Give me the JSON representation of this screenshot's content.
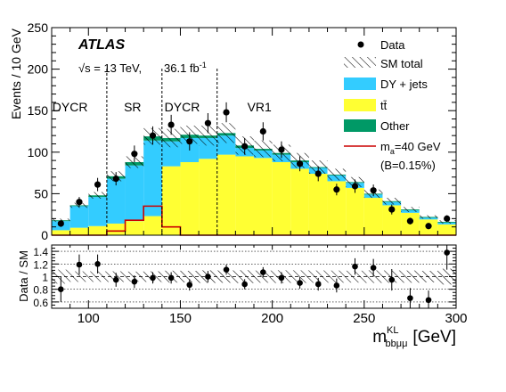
{
  "experiment_label": "ATLAS",
  "energy_label": "√s = 13 TeV,",
  "lumi_label": "36.1  fb",
  "lumi_sup": "-1",
  "chart_data": {
    "type": "histogram",
    "xlabel": "m",
    "xlabel_sup": "KL",
    "xlabel_sub": "bbμμ",
    "xlabel_unit": "[GeV]",
    "ylabel_top": "Events / 10 GeV",
    "ylabel_bottom": "Data / SM",
    "xlim": [
      80,
      300
    ],
    "ylim_top": [
      0,
      250
    ],
    "ylim_bottom": [
      0.5,
      1.5
    ],
    "x_ticks": [
      100,
      150,
      200,
      250,
      300
    ],
    "y_ticks_top": [
      0,
      50,
      100,
      150,
      200,
      250
    ],
    "y_ticks_bottom": [
      0.6,
      0.8,
      1,
      1.2,
      1.4
    ],
    "bin_edges": [
      80,
      90,
      100,
      110,
      120,
      130,
      140,
      150,
      160,
      170,
      180,
      190,
      200,
      210,
      220,
      230,
      240,
      250,
      260,
      270,
      280,
      290,
      300
    ],
    "series": [
      {
        "name": "tt̄",
        "color": "#ffff33",
        "values": [
          6,
          9,
          11,
          14,
          17,
          23,
          83,
          88,
          92,
          97,
          95,
          93,
          88,
          80,
          74,
          65,
          57,
          45,
          36,
          27,
          19,
          13
        ]
      },
      {
        "name": "DY + jets",
        "color": "#33ccff",
        "values": [
          11,
          26,
          35,
          54,
          67,
          91,
          30,
          29,
          25,
          23,
          10,
          9,
          9,
          8,
          7,
          7,
          6,
          4,
          4,
          3,
          2,
          2
        ]
      },
      {
        "name": "Other",
        "color": "#009966",
        "values": [
          1,
          1,
          2,
          3,
          4,
          5,
          4,
          4,
          3,
          3,
          3,
          2,
          2,
          2,
          1,
          1,
          1,
          1,
          1,
          1,
          1,
          1
        ]
      }
    ],
    "signal": {
      "name": "m",
      "name_sub": "a",
      "name_suffix": "=40 GeV",
      "note": "(B=0.15%)",
      "color": "#cc0000",
      "values": [
        0,
        0,
        0,
        5,
        18,
        35,
        10,
        0,
        0,
        0,
        0,
        0,
        0,
        0,
        0,
        0,
        0,
        0,
        0,
        0,
        0,
        0
      ]
    },
    "sm_uncertainty": [
      2,
      3,
      4,
      6,
      7,
      10,
      11,
      11,
      12,
      12,
      11,
      10,
      10,
      9,
      8,
      7,
      6,
      5,
      4,
      3,
      2,
      2
    ],
    "data": {
      "name": "Data",
      "x": [
        85,
        95,
        105,
        115,
        125,
        135,
        145,
        155,
        165,
        175,
        185,
        195,
        205,
        215,
        225,
        235,
        245,
        255,
        265,
        275,
        285,
        295
      ],
      "y": [
        14,
        40,
        61,
        68,
        98,
        120,
        133,
        113,
        135,
        148,
        107,
        125,
        103,
        86,
        74,
        55,
        59,
        54,
        31,
        17,
        11,
        20
      ],
      "yerr": [
        4,
        6,
        8,
        8,
        10,
        11,
        12,
        11,
        12,
        12,
        10,
        11,
        10,
        9,
        9,
        7,
        8,
        7,
        6,
        4,
        3,
        4
      ]
    },
    "ratio": {
      "x": [
        85,
        95,
        105,
        115,
        125,
        135,
        145,
        155,
        165,
        175,
        185,
        195,
        205,
        215,
        225,
        235,
        245,
        255,
        265,
        275,
        285,
        295
      ],
      "y": [
        0.8,
        1.19,
        1.2,
        0.95,
        0.92,
        0.98,
        0.98,
        0.87,
        1.0,
        1.11,
        0.88,
        1.07,
        0.98,
        0.9,
        0.88,
        0.86,
        1.16,
        1.14,
        0.95,
        0.66,
        0.63,
        1.38
      ],
      "yerr": [
        0.2,
        0.16,
        0.15,
        0.11,
        0.1,
        0.09,
        0.09,
        0.09,
        0.09,
        0.08,
        0.08,
        0.08,
        0.09,
        0.09,
        0.1,
        0.11,
        0.13,
        0.14,
        0.17,
        0.16,
        0.15,
        0.27
      ]
    },
    "region_dividers": [
      110,
      140,
      170
    ],
    "region_labels": [
      {
        "text": "DYCR",
        "x": 90
      },
      {
        "text": "SR",
        "x": 124
      },
      {
        "text": "DYCR",
        "x": 151
      },
      {
        "text": "VR1",
        "x": 193
      }
    ],
    "legend": {
      "position": "top-right",
      "sm_total_label": "SM total"
    }
  }
}
